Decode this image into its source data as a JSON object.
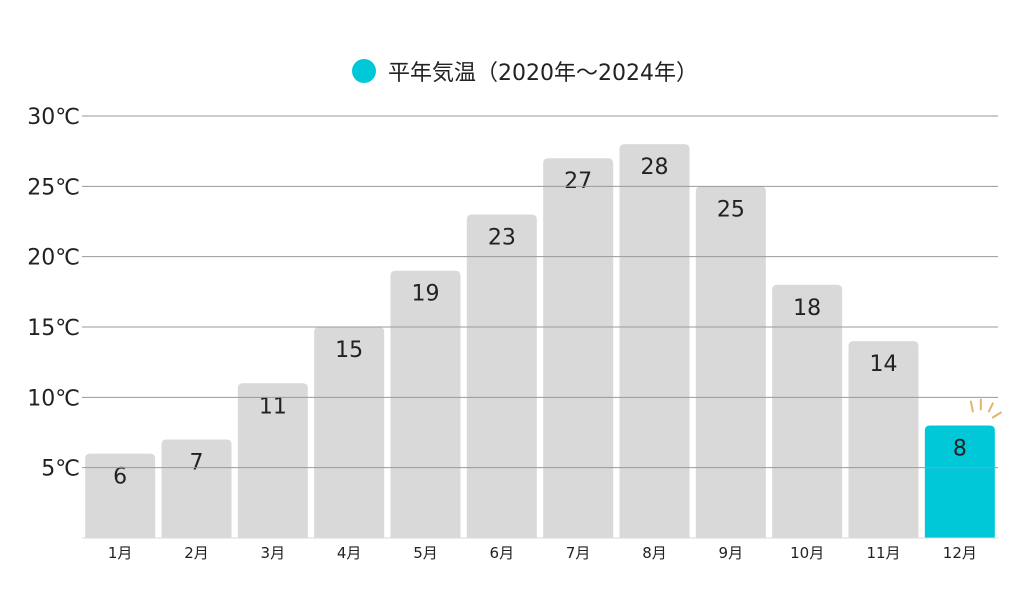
{
  "chart_data": {
    "type": "bar",
    "categories": [
      "1月",
      "2月",
      "3月",
      "4月",
      "5月",
      "6月",
      "7月",
      "8月",
      "9月",
      "10月",
      "11月",
      "12月"
    ],
    "series": [
      {
        "name": "平年気温（2020年～2024年）",
        "values": [
          6,
          7,
          11,
          15,
          19,
          23,
          27,
          28,
          25,
          18,
          14,
          8
        ]
      }
    ],
    "y_ticks": [
      "5℃",
      "10℃",
      "15℃",
      "20℃",
      "25℃",
      "30℃"
    ],
    "ylim": [
      0,
      30
    ],
    "grid": true,
    "legend_position": "top",
    "highlight_index": 11,
    "colors": {
      "bar": "#d9d9d9",
      "highlight": "#00c8d8",
      "grid": "#9a9a9a",
      "sparkle": "#e3b46c"
    }
  }
}
